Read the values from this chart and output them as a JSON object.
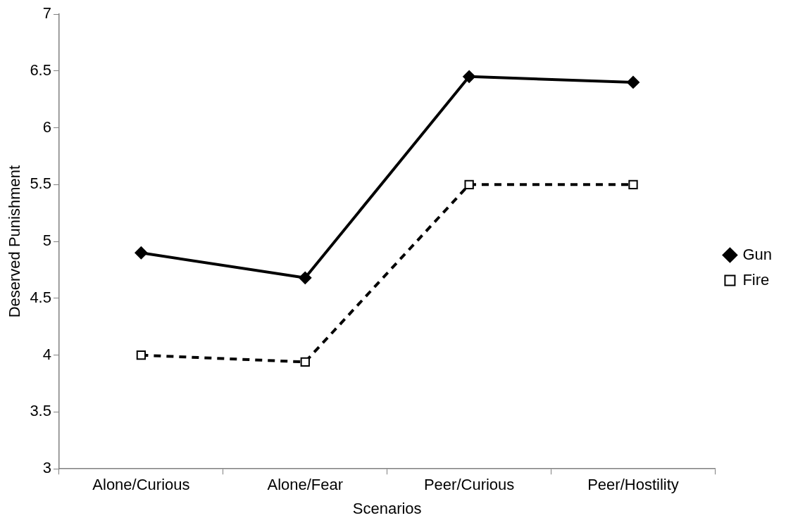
{
  "chart_data": {
    "type": "line",
    "xlabel": "Scenarios",
    "ylabel": "Deserved Punishment",
    "categories": [
      "Alone/Curious",
      "Alone/Fear",
      "Peer/Curious",
      "Peer/Hostility"
    ],
    "series": [
      {
        "name": "Gun",
        "color": "#000000",
        "values": [
          4.9,
          4.68,
          6.45,
          6.4
        ],
        "marker": "diamond",
        "line_style": "solid"
      },
      {
        "name": "Fire",
        "color": "#000000",
        "values": [
          4.0,
          3.94,
          5.5,
          5.5
        ],
        "marker": "square",
        "line_style": "dashed"
      }
    ],
    "ylim": [
      3,
      7
    ],
    "yticks": [
      3,
      3.5,
      4,
      4.5,
      5,
      5.5,
      6,
      6.5,
      7
    ],
    "grid": false,
    "legend": "right"
  }
}
